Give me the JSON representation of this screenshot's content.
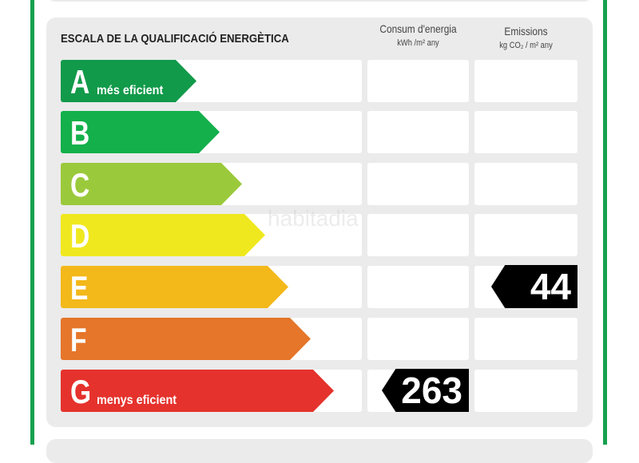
{
  "title": "ESCALA DE LA QUALIFICACIÓ ENERGÈTICA",
  "columns": {
    "energy": {
      "label": "Consum d'energia",
      "unit": "kWh /m² any"
    },
    "emissions": {
      "label": "Emissions",
      "unit": "kg CO₂ / m² any"
    }
  },
  "ratings": [
    {
      "letter": "A",
      "label": "més eficient",
      "color": "#119a4a"
    },
    {
      "letter": "B",
      "label": "",
      "color": "#13b04b"
    },
    {
      "letter": "C",
      "label": "",
      "color": "#9bc93c"
    },
    {
      "letter": "D",
      "label": "",
      "color": "#f0e81f"
    },
    {
      "letter": "E",
      "label": "",
      "color": "#f3b81a"
    },
    {
      "letter": "F",
      "label": "",
      "color": "#e5762a"
    },
    {
      "letter": "G",
      "label": "menys eficient",
      "color": "#e5322c"
    }
  ],
  "energy_value": {
    "value": "263",
    "rating": "G"
  },
  "emissions_value": {
    "value": "44",
    "rating": "E"
  },
  "watermark": "habitadia"
}
